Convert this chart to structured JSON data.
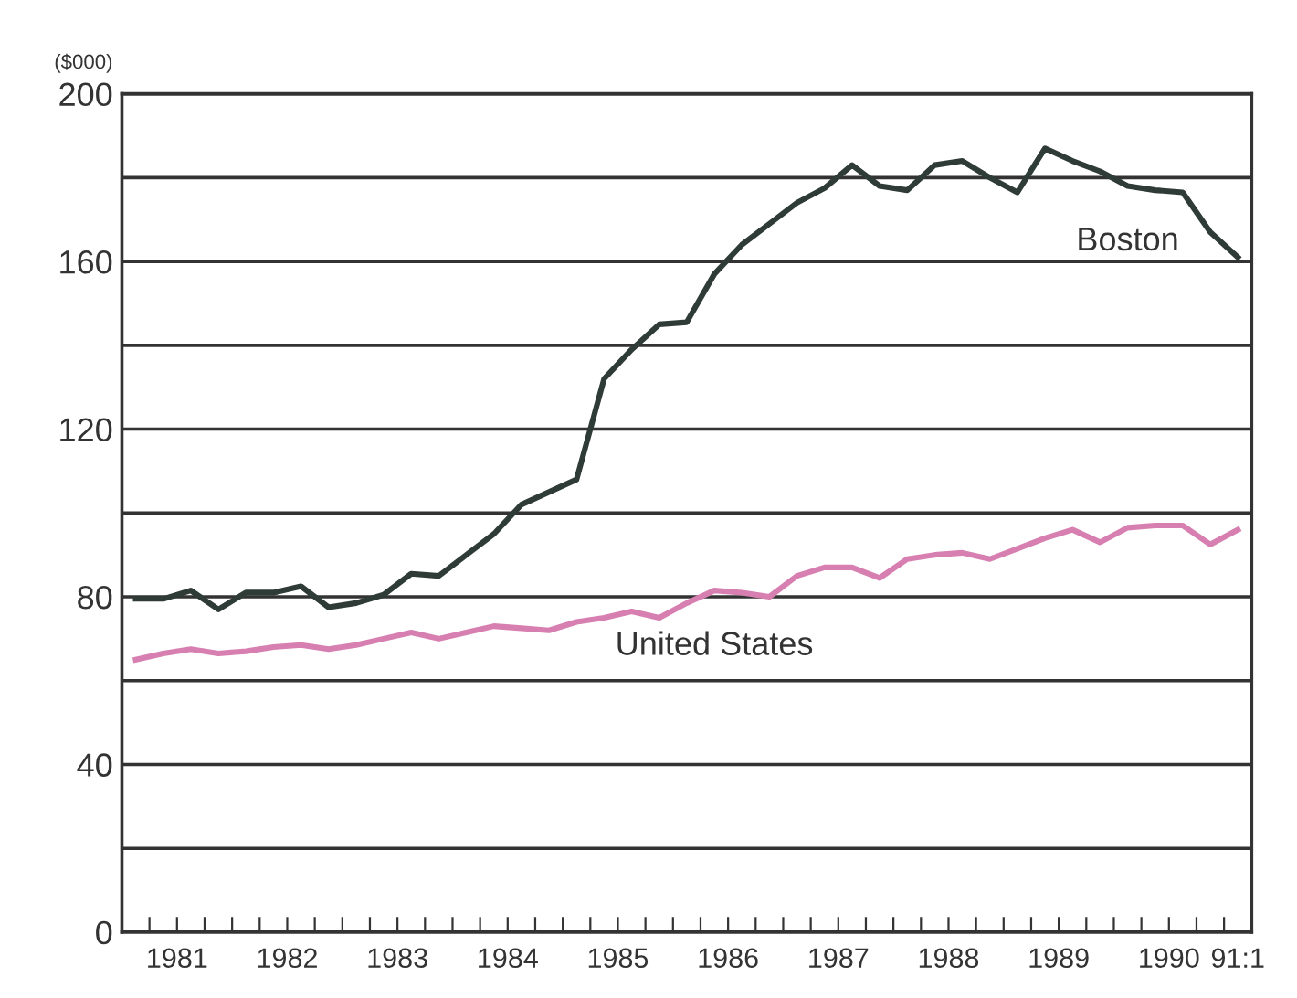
{
  "chart_data": {
    "type": "line",
    "ylabel": "($000)",
    "x": [
      1981.125,
      1981.375,
      1981.625,
      1981.875,
      1982.125,
      1982.375,
      1982.625,
      1982.875,
      1983.125,
      1983.375,
      1983.625,
      1983.875,
      1984.125,
      1984.375,
      1984.625,
      1984.875,
      1985.125,
      1985.375,
      1985.625,
      1985.875,
      1986.125,
      1986.375,
      1986.625,
      1986.875,
      1987.125,
      1987.375,
      1987.625,
      1987.875,
      1988.125,
      1988.375,
      1988.625,
      1988.875,
      1989.125,
      1989.375,
      1989.625,
      1989.875,
      1990.125,
      1990.375,
      1990.625,
      1990.875,
      1991.125
    ],
    "series": [
      {
        "name": "Boston",
        "color": "#2f3b36",
        "values": [
          79.5,
          79.5,
          81.5,
          77,
          81,
          81,
          82.5,
          77.5,
          78.5,
          80.5,
          85.5,
          85,
          90,
          95,
          102,
          105,
          108,
          132,
          139,
          145,
          145.5,
          157,
          164,
          169,
          174,
          177.5,
          183,
          178,
          177,
          183,
          184,
          180,
          176.5,
          187,
          184,
          181.5,
          178,
          177,
          176.5,
          167,
          161
        ]
      },
      {
        "name": "United States",
        "color": "#d77fb0",
        "values": [
          65,
          66.5,
          67.5,
          66.5,
          67,
          68,
          68.5,
          67.5,
          68.5,
          70,
          71.5,
          70,
          71.5,
          73,
          72.5,
          72,
          74,
          75,
          76.5,
          75,
          78.5,
          81.5,
          81,
          80,
          85,
          87,
          87,
          84.5,
          89,
          90,
          90.5,
          89,
          91.5,
          94,
          96,
          93,
          96.5,
          97,
          97,
          92.5,
          96
        ]
      }
    ],
    "xlim": [
      1981,
      1991.25
    ],
    "xticks": [
      {
        "value": 1981.25,
        "label": null
      },
      {
        "value": 1981.5,
        "label": "1981"
      },
      {
        "value": 1981.75,
        "label": null
      },
      {
        "value": 1982,
        "label": null
      },
      {
        "value": 1982.25,
        "label": null
      },
      {
        "value": 1982.5,
        "label": "1982"
      },
      {
        "value": 1982.75,
        "label": null
      },
      {
        "value": 1983,
        "label": null
      },
      {
        "value": 1983.25,
        "label": null
      },
      {
        "value": 1983.5,
        "label": "1983"
      },
      {
        "value": 1983.75,
        "label": null
      },
      {
        "value": 1984,
        "label": null
      },
      {
        "value": 1984.25,
        "label": null
      },
      {
        "value": 1984.5,
        "label": "1984"
      },
      {
        "value": 1984.75,
        "label": null
      },
      {
        "value": 1985,
        "label": null
      },
      {
        "value": 1985.25,
        "label": null
      },
      {
        "value": 1985.5,
        "label": "1985"
      },
      {
        "value": 1985.75,
        "label": null
      },
      {
        "value": 1986,
        "label": null
      },
      {
        "value": 1986.25,
        "label": null
      },
      {
        "value": 1986.5,
        "label": "1986"
      },
      {
        "value": 1986.75,
        "label": null
      },
      {
        "value": 1987,
        "label": null
      },
      {
        "value": 1987.25,
        "label": null
      },
      {
        "value": 1987.5,
        "label": "1987"
      },
      {
        "value": 1987.75,
        "label": null
      },
      {
        "value": 1988,
        "label": null
      },
      {
        "value": 1988.25,
        "label": null
      },
      {
        "value": 1988.5,
        "label": "1988"
      },
      {
        "value": 1988.75,
        "label": null
      },
      {
        "value": 1989,
        "label": null
      },
      {
        "value": 1989.25,
        "label": null
      },
      {
        "value": 1989.5,
        "label": "1989"
      },
      {
        "value": 1989.75,
        "label": null
      },
      {
        "value": 1990,
        "label": null
      },
      {
        "value": 1990.25,
        "label": null
      },
      {
        "value": 1990.5,
        "label": "1990"
      },
      {
        "value": 1990.75,
        "label": null
      },
      {
        "value": 1991,
        "label": null
      },
      {
        "value": 1991.125,
        "label": "91:1"
      }
    ],
    "ylim": [
      0,
      200
    ],
    "yticks": [
      0,
      {
        "value": 20,
        "label": null
      },
      40,
      {
        "value": 60,
        "label": null
      },
      80,
      {
        "value": 100,
        "label": null
      },
      120,
      {
        "value": 140,
        "label": null
      },
      160,
      {
        "value": 180,
        "label": null
      },
      200
    ],
    "grid": "y",
    "legend": false,
    "marker": "none",
    "line_style": "solid"
  }
}
